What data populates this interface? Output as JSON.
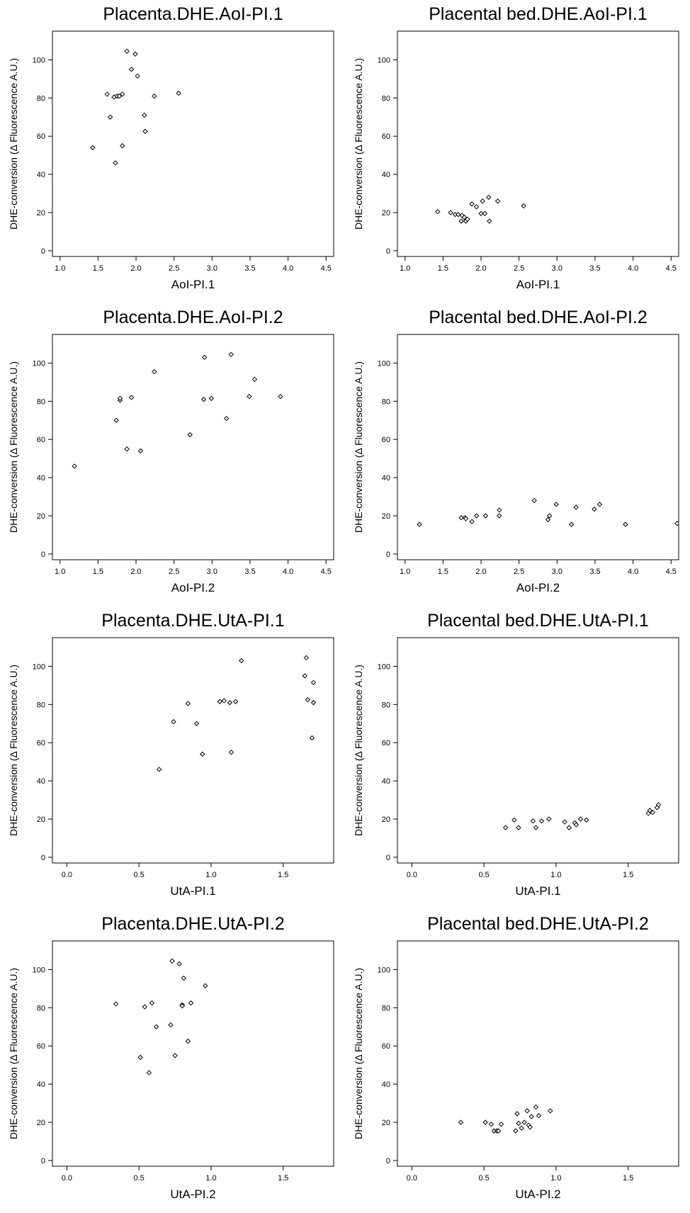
{
  "chart_data": [
    {
      "type": "scatter",
      "title": "Placenta.DHE.AoI-PI.1",
      "xlabel": "AoI-PI.1",
      "ylabel": "DHE-conversion (Δ Fluorescence A.U.)",
      "xlim": [
        0.9,
        4.6
      ],
      "ylim": [
        -3,
        115
      ],
      "xticks": [
        "1.0",
        "1.5",
        "2.0",
        "2.5",
        "3.0",
        "3.5",
        "4.0",
        "4.5"
      ],
      "yticks": [
        "0",
        "20",
        "40",
        "60",
        "80",
        "100"
      ],
      "points": [
        [
          1.43,
          54
        ],
        [
          1.62,
          82
        ],
        [
          1.66,
          70
        ],
        [
          1.71,
          80.5
        ],
        [
          1.73,
          46
        ],
        [
          1.75,
          81
        ],
        [
          1.78,
          81
        ],
        [
          1.82,
          82
        ],
        [
          1.82,
          55
        ],
        [
          1.88,
          104.5
        ],
        [
          1.94,
          95
        ],
        [
          1.99,
          103
        ],
        [
          2.02,
          91.5
        ],
        [
          2.11,
          71
        ],
        [
          2.12,
          62.5
        ],
        [
          2.24,
          81
        ],
        [
          2.56,
          82.5
        ]
      ]
    },
    {
      "type": "scatter",
      "title": "Placental bed.DHE.AoI-PI.1",
      "xlabel": "AoI-PI.1",
      "ylabel": "DHE-conversion (Δ Fluorescence A.U.)",
      "xlim": [
        0.9,
        4.6
      ],
      "ylim": [
        -3,
        115
      ],
      "xticks": [
        "1.0",
        "1.5",
        "2.0",
        "2.5",
        "3.0",
        "3.5",
        "4.0",
        "4.5"
      ],
      "yticks": [
        "0",
        "20",
        "40",
        "60",
        "80",
        "100"
      ],
      "points": [
        [
          1.43,
          20.5
        ],
        [
          1.6,
          20
        ],
        [
          1.66,
          19
        ],
        [
          1.7,
          19
        ],
        [
          1.74,
          15.5
        ],
        [
          1.75,
          18.5
        ],
        [
          1.78,
          17.5
        ],
        [
          1.8,
          15.5
        ],
        [
          1.82,
          16.5
        ],
        [
          1.88,
          24.5
        ],
        [
          1.94,
          23
        ],
        [
          2.0,
          19.5
        ],
        [
          2.02,
          26
        ],
        [
          2.05,
          19.5
        ],
        [
          2.1,
          28
        ],
        [
          2.11,
          15.5
        ],
        [
          2.22,
          26
        ],
        [
          2.56,
          23.5
        ]
      ]
    },
    {
      "type": "scatter",
      "title": "Placenta.DHE.AoI-PI.2",
      "xlabel": "AoI-PI.2",
      "ylabel": "DHE-conversion (Δ Fluorescence A.U.)",
      "xlim": [
        0.9,
        4.6
      ],
      "ylim": [
        -3,
        115
      ],
      "xticks": [
        "1.0",
        "1.5",
        "2.0",
        "2.5",
        "3.0",
        "3.5",
        "4.0",
        "4.5"
      ],
      "yticks": [
        "0",
        "20",
        "40",
        "60",
        "80",
        "100"
      ],
      "points": [
        [
          1.19,
          46
        ],
        [
          1.74,
          70
        ],
        [
          1.79,
          80.5
        ],
        [
          1.79,
          81.5
        ],
        [
          1.88,
          55
        ],
        [
          1.94,
          82
        ],
        [
          2.06,
          54
        ],
        [
          2.24,
          95.5
        ],
        [
          2.71,
          62.5
        ],
        [
          2.89,
          81
        ],
        [
          2.9,
          103
        ],
        [
          2.99,
          81.5
        ],
        [
          3.19,
          71
        ],
        [
          3.25,
          104.5
        ],
        [
          3.49,
          82.5
        ],
        [
          3.56,
          91.5
        ],
        [
          3.9,
          82.5
        ]
      ]
    },
    {
      "type": "scatter",
      "title": "Placental bed.DHE.AoI-PI.2",
      "xlabel": "AoI-PI.2",
      "ylabel": "DHE-conversion (Δ Fluorescence A.U.)",
      "xlim": [
        0.9,
        4.6
      ],
      "ylim": [
        -3,
        115
      ],
      "xticks": [
        "1.0",
        "1.5",
        "2.0",
        "2.5",
        "3.0",
        "3.5",
        "4.0",
        "4.5"
      ],
      "yticks": [
        "0",
        "20",
        "40",
        "60",
        "80",
        "100"
      ],
      "points": [
        [
          1.19,
          15.5
        ],
        [
          1.74,
          19
        ],
        [
          1.79,
          19
        ],
        [
          1.8,
          18.5
        ],
        [
          1.88,
          17
        ],
        [
          1.94,
          20
        ],
        [
          2.06,
          20
        ],
        [
          2.24,
          23
        ],
        [
          2.24,
          20
        ],
        [
          2.7,
          28
        ],
        [
          2.88,
          18
        ],
        [
          2.9,
          20
        ],
        [
          2.99,
          26
        ],
        [
          3.19,
          15.5
        ],
        [
          3.25,
          24.5
        ],
        [
          3.49,
          23.5
        ],
        [
          3.56,
          26
        ],
        [
          3.9,
          15.5
        ],
        [
          4.58,
          16
        ]
      ]
    },
    {
      "type": "scatter",
      "title": "Placenta.DHE.UtA-PI.1",
      "xlabel": "UtA-PI.1",
      "ylabel": "DHE-conversion (Δ Fluorescence A.U.)",
      "xlim": [
        -0.1,
        1.85
      ],
      "ylim": [
        -3,
        115
      ],
      "xticks": [
        "0.0",
        "0.5",
        "1.0",
        "1.5"
      ],
      "yticks": [
        "0",
        "20",
        "40",
        "60",
        "80",
        "100"
      ],
      "points": [
        [
          0.64,
          46
        ],
        [
          0.74,
          71
        ],
        [
          0.84,
          80.5
        ],
        [
          0.9,
          70
        ],
        [
          0.94,
          54
        ],
        [
          1.06,
          81.5
        ],
        [
          1.09,
          82
        ],
        [
          1.13,
          81
        ],
        [
          1.14,
          55
        ],
        [
          1.17,
          81.5
        ],
        [
          1.21,
          103
        ],
        [
          1.65,
          95
        ],
        [
          1.66,
          104.5
        ],
        [
          1.67,
          82.5
        ],
        [
          1.7,
          62.5
        ],
        [
          1.71,
          91.5
        ],
        [
          1.71,
          81
        ]
      ]
    },
    {
      "type": "scatter",
      "title": "Placental bed.DHE.UtA-PI.1",
      "xlabel": "UtA-PI.1",
      "ylabel": "DHE-conversion (Δ Fluorescence A.U.)",
      "xlim": [
        -0.1,
        1.85
      ],
      "ylim": [
        -3,
        115
      ],
      "xticks": [
        "0.0",
        "0.5",
        "1.0",
        "1.5"
      ],
      "yticks": [
        "0",
        "20",
        "40",
        "60",
        "80",
        "100"
      ],
      "points": [
        [
          0.65,
          15.5
        ],
        [
          0.71,
          19.5
        ],
        [
          0.74,
          15.5
        ],
        [
          0.84,
          19
        ],
        [
          0.86,
          15.5
        ],
        [
          0.9,
          19
        ],
        [
          0.95,
          20
        ],
        [
          1.06,
          18.5
        ],
        [
          1.09,
          15.5
        ],
        [
          1.13,
          18
        ],
        [
          1.14,
          17
        ],
        [
          1.17,
          20
        ],
        [
          1.21,
          19.5
        ],
        [
          1.64,
          23
        ],
        [
          1.65,
          24.5
        ],
        [
          1.67,
          23.5
        ],
        [
          1.7,
          26
        ],
        [
          1.71,
          27.5
        ]
      ]
    },
    {
      "type": "scatter",
      "title": "Placenta.DHE.UtA-PI.2",
      "xlabel": "UtA-PI.2",
      "ylabel": "DHE-conversion (Δ Fluorescence A.U.)",
      "xlim": [
        -0.1,
        1.85
      ],
      "ylim": [
        -3,
        115
      ],
      "xticks": [
        "0.0",
        "0.5",
        "1.0",
        "1.5"
      ],
      "yticks": [
        "0",
        "20",
        "40",
        "60",
        "80",
        "100"
      ],
      "points": [
        [
          0.34,
          82
        ],
        [
          0.51,
          54
        ],
        [
          0.54,
          80.5
        ],
        [
          0.57,
          46
        ],
        [
          0.59,
          82.5
        ],
        [
          0.62,
          70
        ],
        [
          0.72,
          71
        ],
        [
          0.73,
          104.5
        ],
        [
          0.75,
          55
        ],
        [
          0.78,
          103
        ],
        [
          0.8,
          81.5
        ],
        [
          0.8,
          81
        ],
        [
          0.81,
          95.5
        ],
        [
          0.84,
          62.5
        ],
        [
          0.86,
          82.5
        ],
        [
          0.96,
          91.5
        ]
      ]
    },
    {
      "type": "scatter",
      "title": "Placental bed.DHE.UtA-PI.2",
      "xlabel": "UtA-PI.2",
      "ylabel": "DHE-conversion (Δ Fluorescence A.U.)",
      "xlim": [
        -0.1,
        1.85
      ],
      "ylim": [
        -3,
        115
      ],
      "xticks": [
        "0.0",
        "0.5",
        "1.0",
        "1.5"
      ],
      "yticks": [
        "0",
        "20",
        "40",
        "60",
        "80",
        "100"
      ],
      "points": [
        [
          0.34,
          20
        ],
        [
          0.51,
          20
        ],
        [
          0.55,
          19
        ],
        [
          0.57,
          15.5
        ],
        [
          0.59,
          15.5
        ],
        [
          0.6,
          15.5
        ],
        [
          0.62,
          19
        ],
        [
          0.72,
          15.5
        ],
        [
          0.73,
          24.5
        ],
        [
          0.74,
          19.5
        ],
        [
          0.76,
          17
        ],
        [
          0.78,
          20
        ],
        [
          0.8,
          26
        ],
        [
          0.81,
          18.5
        ],
        [
          0.82,
          17.5
        ],
        [
          0.83,
          23
        ],
        [
          0.86,
          28
        ],
        [
          0.88,
          23.5
        ],
        [
          0.96,
          26
        ]
      ]
    }
  ]
}
